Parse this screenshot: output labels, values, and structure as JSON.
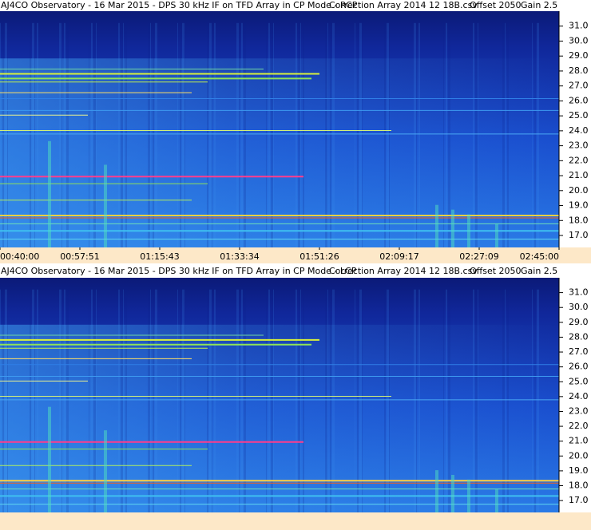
{
  "chart_data": [
    {
      "type": "spectrogram",
      "title": "AJ4CO Observatory - 16 Mar 2015 - DPS 30 kHz IF on TFD Array in CP Mode - RCP",
      "subtitle": "Correction Array 2014 12 18B.csv",
      "annotations": [
        "Offset 2050",
        "Gain 2.5"
      ],
      "categories": [
        "00:40:00",
        "00:57:51",
        "01:15:43",
        "01:33:34",
        "01:51:26",
        "02:09:17",
        "02:27:09",
        "02:45:00"
      ],
      "ylim": [
        16.2,
        32.0
      ],
      "yticks": [
        {
          "value": 17,
          "label": "17.0"
        },
        {
          "value": 18,
          "label": "18.0"
        },
        {
          "value": 19,
          "label": "19.0"
        },
        {
          "value": 20,
          "label": "20.0"
        },
        {
          "value": 21,
          "label": "21.0"
        },
        {
          "value": 22,
          "label": "22.0"
        },
        {
          "value": 23,
          "label": "23.0"
        },
        {
          "value": 24,
          "label": "24.0"
        },
        {
          "value": 25,
          "label": "25.0"
        },
        {
          "value": 26,
          "label": "26.0"
        },
        {
          "value": 27,
          "label": "27.0"
        },
        {
          "value": 28,
          "label": "28.0"
        },
        {
          "value": 29,
          "label": "29.0"
        },
        {
          "value": 30,
          "label": "30.0"
        },
        {
          "value": 31,
          "label": "31.0"
        }
      ]
    },
    {
      "type": "spectrogram",
      "title": "AJ4CO Observatory - 16 Mar 2015 - DPS 30 kHz IF on TFD Array in CP Mode - LCP",
      "subtitle": "Correction Array 2014 12 18B.csv",
      "annotations": [
        "Offset 2050",
        "Gain 2.5"
      ],
      "ylim": [
        16.2,
        32.0
      ],
      "yticks": [
        {
          "value": 17,
          "label": "17.0"
        },
        {
          "value": 18,
          "label": "18.0"
        },
        {
          "value": 19,
          "label": "19.0"
        },
        {
          "value": 20,
          "label": "20.0"
        },
        {
          "value": 21,
          "label": "21.0"
        },
        {
          "value": 22,
          "label": "22.0"
        },
        {
          "value": 23,
          "label": "23.0"
        },
        {
          "value": 24,
          "label": "24.0"
        },
        {
          "value": 25,
          "label": "25.0"
        },
        {
          "value": 26,
          "label": "26.0"
        },
        {
          "value": 27,
          "label": "27.0"
        },
        {
          "value": 28,
          "label": "28.0"
        },
        {
          "value": 29,
          "label": "29.0"
        },
        {
          "value": 30,
          "label": "30.0"
        },
        {
          "value": 31,
          "label": "31.0"
        }
      ]
    }
  ]
}
